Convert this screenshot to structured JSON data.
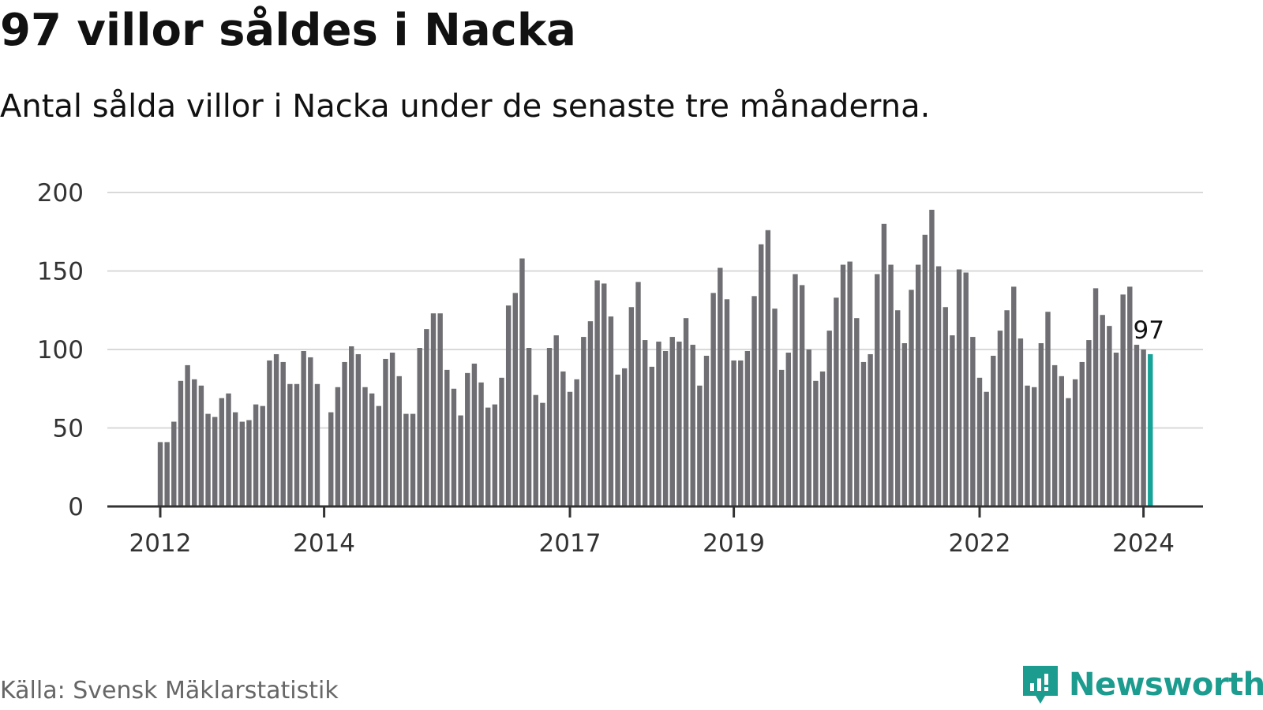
{
  "header": {
    "title": "97 villor såldes i Nacka",
    "subtitle": "Antal sålda villor i Nacka under de senaste tre månaderna."
  },
  "footer": {
    "source": "Källa: Svensk Mäklarstatistik",
    "brand": "Newsworthy"
  },
  "colors": {
    "bar": "#6e6e73",
    "highlight": "#17a398",
    "grid": "#d9d9d9",
    "axis": "#333333",
    "brand": "#1c9c8f"
  },
  "chart_data": {
    "type": "bar",
    "title": "97 villor såldes i Nacka",
    "subtitle": "Antal sålda villor i Nacka under de senaste tre månaderna.",
    "xlabel": "",
    "ylabel": "",
    "ylim": [
      0,
      200
    ],
    "yticks": [
      0,
      50,
      100,
      150,
      200
    ],
    "xticks": [
      {
        "label": "2012",
        "index": 0
      },
      {
        "label": "2014",
        "index": 24
      },
      {
        "label": "2017",
        "index": 60
      },
      {
        "label": "2019",
        "index": 84
      },
      {
        "label": "2022",
        "index": 120
      },
      {
        "label": "2024",
        "index": 144
      }
    ],
    "grid": true,
    "start": "2012-01",
    "frequency": "monthly",
    "highlight_label": "97",
    "values": [
      41,
      41,
      54,
      80,
      90,
      81,
      77,
      59,
      57,
      69,
      72,
      60,
      54,
      55,
      65,
      64,
      93,
      97,
      92,
      78,
      78,
      99,
      95,
      78,
      0,
      60,
      76,
      92,
      102,
      97,
      76,
      72,
      64,
      94,
      98,
      83,
      59,
      59,
      101,
      113,
      123,
      123,
      87,
      75,
      58,
      85,
      91,
      79,
      63,
      65,
      82,
      128,
      136,
      158,
      101,
      71,
      66,
      101,
      109,
      86,
      73,
      81,
      108,
      118,
      144,
      142,
      121,
      84,
      88,
      127,
      143,
      106,
      89,
      105,
      99,
      108,
      105,
      120,
      103,
      77,
      96,
      136,
      152,
      132,
      93,
      93,
      99,
      134,
      167,
      176,
      126,
      87,
      98,
      148,
      141,
      100,
      80,
      86,
      112,
      133,
      154,
      156,
      120,
      92,
      97,
      148,
      180,
      154,
      125,
      104,
      138,
      154,
      173,
      189,
      153,
      127,
      109,
      151,
      149,
      108,
      82,
      73,
      96,
      112,
      125,
      140,
      107,
      77,
      76,
      104,
      124,
      90,
      83,
      69,
      81,
      92,
      106,
      139,
      122,
      115,
      98,
      135,
      140,
      103,
      100,
      97
    ]
  }
}
